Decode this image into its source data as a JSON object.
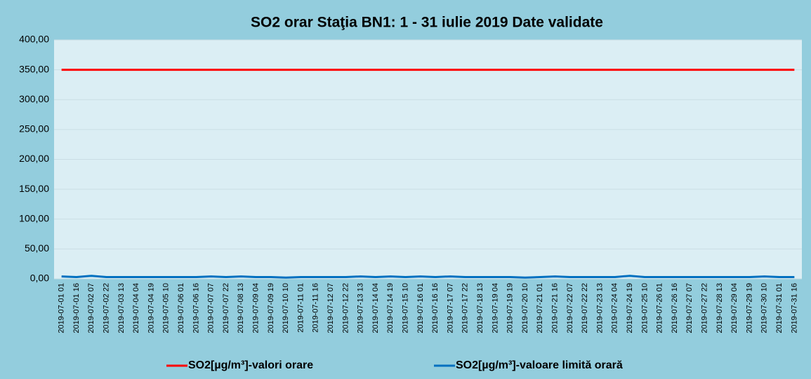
{
  "chart_data": {
    "type": "line",
    "title": "SO2 orar Staţia BN1: 1 - 31 iulie 2019 Date validate",
    "categories": [
      "2019-07-01 01",
      "2019-07-01 16",
      "2019-07-02 07",
      "2019-07-02 22",
      "2019-07-03 13",
      "2019-07-04 04",
      "2019-07-04 19",
      "2019-07-05 10",
      "2019-07-06 01",
      "2019-07-06 16",
      "2019-07-07 07",
      "2019-07-07 22",
      "2019-07-08 13",
      "2019-07-09 04",
      "2019-07-09 19",
      "2019-07-10 10",
      "2019-07-11 01",
      "2019-07-11 16",
      "2019-07-12 07",
      "2019-07-12 22",
      "2019-07-13 13",
      "2019-07-14 04",
      "2019-07-14 19",
      "2019-07-15 10",
      "2019-07-16 01",
      "2019-07-16 16",
      "2019-07-17 07",
      "2019-07-17 22",
      "2019-07-18 13",
      "2019-07-19 04",
      "2019-07-19 19",
      "2019-07-20 10",
      "2019-07-21 01",
      "2019-07-21 16",
      "2019-07-22 07",
      "2019-07-22 22",
      "2019-07-23 13",
      "2019-07-24 04",
      "2019-07-24 19",
      "2019-07-25 10",
      "2019-07-26 01",
      "2019-07-26 16",
      "2019-07-27 07",
      "2019-07-27 22",
      "2019-07-28 13",
      "2019-07-29 04",
      "2019-07-29 19",
      "2019-07-30 10",
      "2019-07-31 01",
      "2019-07-31 16"
    ],
    "series": [
      {
        "name": "SO2[µg/m³]-valori orare",
        "color": "#ff0000",
        "values": [
          350,
          350,
          350,
          350,
          350,
          350,
          350,
          350,
          350,
          350,
          350,
          350,
          350,
          350,
          350,
          350,
          350,
          350,
          350,
          350,
          350,
          350,
          350,
          350,
          350,
          350,
          350,
          350,
          350,
          350,
          350,
          350,
          350,
          350,
          350,
          350,
          350,
          350,
          350,
          350,
          350,
          350,
          350,
          350,
          350,
          350,
          350,
          350,
          350,
          350
        ]
      },
      {
        "name": "SO2[µg/m³]-valoare limită orară",
        "color": "#0070c0",
        "values": [
          4,
          3,
          5,
          3,
          3,
          3,
          3,
          3,
          3,
          3,
          4,
          3,
          4,
          3,
          3,
          2,
          3,
          3,
          3,
          3,
          4,
          3,
          4,
          3,
          4,
          3,
          4,
          3,
          3,
          3,
          3,
          2,
          3,
          4,
          3,
          3,
          3,
          3,
          5,
          3,
          3,
          3,
          3,
          3,
          3,
          3,
          3,
          4,
          3,
          3
        ]
      }
    ],
    "ylim": [
      0,
      400
    ],
    "yticks": [
      {
        "value": 0,
        "label": "0,00"
      },
      {
        "value": 50,
        "label": "50,00"
      },
      {
        "value": 100,
        "label": "100,00"
      },
      {
        "value": 150,
        "label": "150,00"
      },
      {
        "value": 200,
        "label": "200,00"
      },
      {
        "value": 250,
        "label": "250,00"
      },
      {
        "value": 300,
        "label": "300,00"
      },
      {
        "value": 350,
        "label": "350,00"
      },
      {
        "value": 400,
        "label": "400,00"
      }
    ],
    "grid": true
  }
}
